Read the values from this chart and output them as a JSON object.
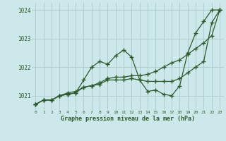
{
  "title": "Graphe pression niveau de la mer (hPa)",
  "background_color": "#cce8ea",
  "grid_color": "#aac8ca",
  "line_color": "#2d5a2d",
  "xlim": [
    -0.5,
    23.5
  ],
  "ylim": [
    1020.5,
    1024.25
  ],
  "yticks": [
    1021,
    1022,
    1023,
    1024
  ],
  "xticks": [
    0,
    1,
    2,
    3,
    4,
    5,
    6,
    7,
    8,
    9,
    10,
    11,
    12,
    13,
    14,
    15,
    16,
    17,
    18,
    19,
    20,
    21,
    22,
    23
  ],
  "series1_x": [
    0,
    1,
    2,
    3,
    4,
    5,
    6,
    7,
    8,
    9,
    10,
    11,
    12,
    13,
    14,
    15,
    16,
    17,
    18,
    19,
    20,
    21,
    22,
    23
  ],
  "series1_y": [
    1020.7,
    1020.85,
    1020.85,
    1021.0,
    1021.05,
    1021.1,
    1021.55,
    1022.0,
    1022.2,
    1022.1,
    1022.4,
    1022.6,
    1022.35,
    1021.55,
    1021.15,
    1021.2,
    1021.05,
    1021.0,
    1021.35,
    1022.5,
    1023.2,
    1023.6,
    1024.0,
    1024.0
  ],
  "series2_x": [
    0,
    1,
    2,
    3,
    4,
    5,
    6,
    7,
    8,
    9,
    10,
    11,
    12,
    13,
    14,
    15,
    16,
    17,
    18,
    19,
    20,
    21,
    22,
    23
  ],
  "series2_y": [
    1020.7,
    1020.85,
    1020.85,
    1021.0,
    1021.05,
    1021.1,
    1021.3,
    1021.35,
    1021.4,
    1021.55,
    1021.55,
    1021.55,
    1021.6,
    1021.55,
    1021.5,
    1021.5,
    1021.5,
    1021.5,
    1021.6,
    1021.8,
    1022.0,
    1022.2,
    1023.55,
    1024.0
  ],
  "series3_x": [
    0,
    1,
    2,
    3,
    4,
    5,
    6,
    7,
    8,
    9,
    10,
    11,
    12,
    13,
    14,
    15,
    16,
    17,
    18,
    19,
    20,
    21,
    22,
    23
  ],
  "series3_y": [
    1020.7,
    1020.85,
    1020.85,
    1021.0,
    1021.1,
    1021.15,
    1021.3,
    1021.35,
    1021.45,
    1021.6,
    1021.65,
    1021.65,
    1021.7,
    1021.7,
    1021.75,
    1021.85,
    1022.0,
    1022.15,
    1022.25,
    1022.45,
    1022.65,
    1022.85,
    1023.1,
    1024.0
  ]
}
